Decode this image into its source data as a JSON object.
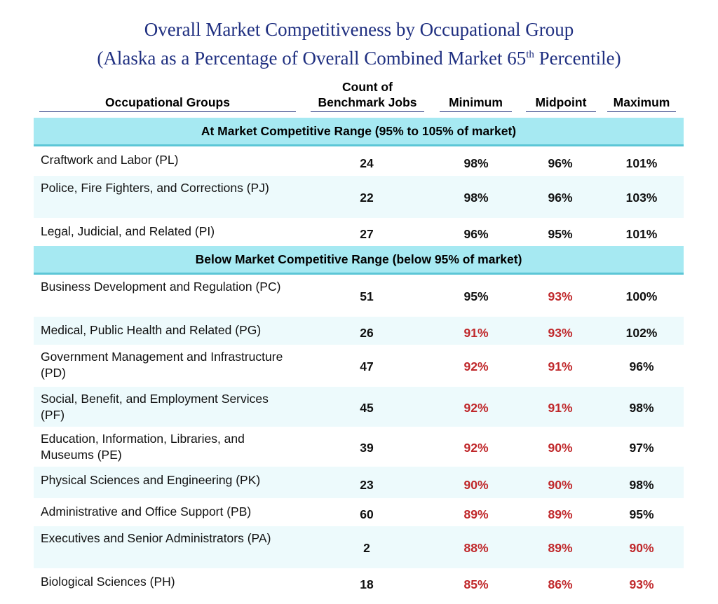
{
  "title_line1": "Overall Market Competitiveness by Occupational Group",
  "title_line2_pre": "(Alaska as a Percentage of Overall Combined Market 65",
  "title_line2_sup": "th",
  "title_line2_post": " Percentile)",
  "headers": {
    "group": "Occupational Groups",
    "count_line1": "Count of",
    "count_line2": "Benchmark Jobs",
    "minimum": "Minimum",
    "midpoint": "Midpoint",
    "maximum": "Maximum"
  },
  "colors": {
    "below_range": "#c0282b",
    "section_bg": "#a6e9f2",
    "title": "#1f2f80"
  },
  "sections": [
    {
      "label": "At Market Competitive Range (95% to 105% of market)",
      "rows": [
        {
          "group": "Craftwork and Labor (PL)",
          "count": "24",
          "min": "98%",
          "mid": "96%",
          "max": "101%"
        },
        {
          "group": "Police, Fire Fighters, and Corrections (PJ)",
          "count": "22",
          "min": "98%",
          "mid": "96%",
          "max": "103%"
        },
        {
          "group": "Legal, Judicial, and Related (PI)",
          "count": "27",
          "min": "96%",
          "mid": "95%",
          "max": "101%"
        }
      ]
    },
    {
      "label": "Below Market Competitive Range (below 95% of market)",
      "rows": [
        {
          "group": "Business Development and Regulation (PC)",
          "count": "51",
          "min": "95%",
          "mid": "93%",
          "max": "100%"
        },
        {
          "group": "Medical, Public Health and Related (PG)",
          "count": "26",
          "min": "91%",
          "mid": "93%",
          "max": "102%"
        },
        {
          "group": "Government Management and Infrastructure (PD)",
          "count": "47",
          "min": "92%",
          "mid": "91%",
          "max": "96%"
        },
        {
          "group": "Social, Benefit, and Employment Services (PF)",
          "count": "45",
          "min": "92%",
          "mid": "91%",
          "max": "98%"
        },
        {
          "group": "Education, Information, Libraries, and Museums (PE)",
          "count": "39",
          "min": "92%",
          "mid": "90%",
          "max": "97%"
        },
        {
          "group": "Physical Sciences and Engineering (PK)",
          "count": "23",
          "min": "90%",
          "mid": "90%",
          "max": "98%"
        },
        {
          "group": "Administrative and Office Support (PB)",
          "count": "60",
          "min": "89%",
          "mid": "89%",
          "max": "95%"
        },
        {
          "group": "Executives and Senior Administrators (PA)",
          "count": "2",
          "min": "88%",
          "mid": "89%",
          "max": "90%"
        },
        {
          "group": "Biological Sciences (PH)",
          "count": "18",
          "min": "85%",
          "mid": "86%",
          "max": "93%"
        }
      ]
    }
  ]
}
